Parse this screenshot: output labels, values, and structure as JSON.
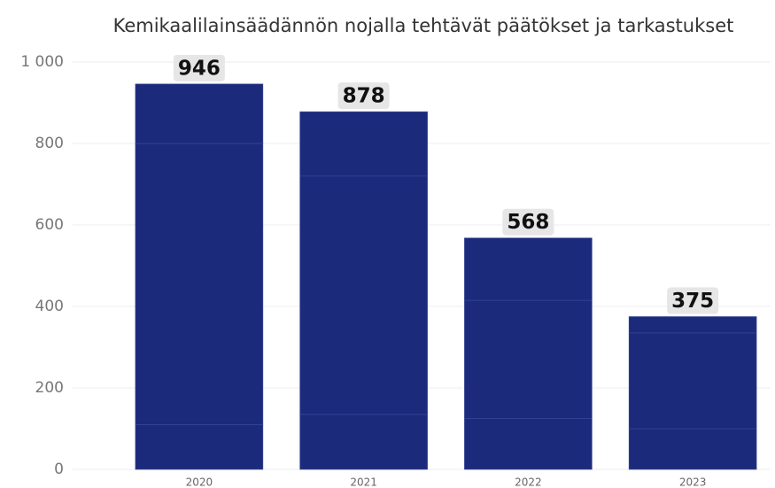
{
  "chart_data": {
    "type": "stacked_bar",
    "title": "Kemikaalilainsäädännön nojalla tehtävät päätökset ja tarkastukset",
    "categories": [
      "2020",
      "2021",
      "2022",
      "2023"
    ],
    "series": [
      {
        "color": "#1c2a7c",
        "values": [
          110,
          135,
          125,
          100
        ]
      },
      {
        "color": "#1c2a7c",
        "values": [
          690,
          585,
          290,
          235
        ]
      },
      {
        "color": "#1c2a7c",
        "values": [
          146,
          158,
          153,
          40
        ]
      }
    ],
    "totals": [
      946,
      878,
      568,
      375
    ],
    "ylim": [
      0,
      1000
    ],
    "yticks": [
      0,
      200,
      400,
      600,
      800,
      {
        "value": 1000,
        "label": "1 000"
      }
    ],
    "grid": true
  }
}
